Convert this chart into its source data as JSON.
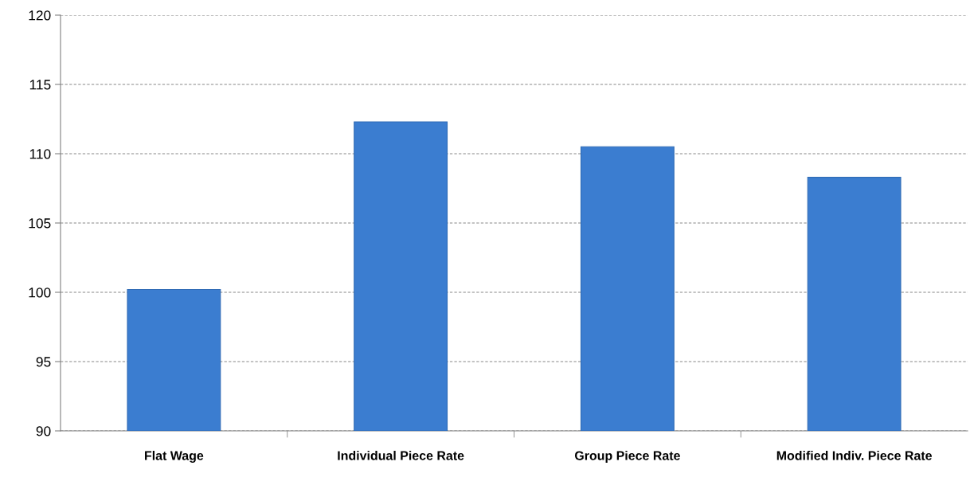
{
  "chart_data": {
    "type": "bar",
    "categories": [
      "Flat Wage",
      "Individual Piece Rate",
      "Group Piece Rate",
      "Modified Indiv. Piece Rate"
    ],
    "values": [
      100.2,
      112.3,
      110.5,
      108.3
    ],
    "color": "#3b7dd0",
    "ylim": [
      90,
      120
    ],
    "yticks": [
      90,
      95,
      100,
      105,
      110,
      115,
      120
    ],
    "grid": "y"
  }
}
